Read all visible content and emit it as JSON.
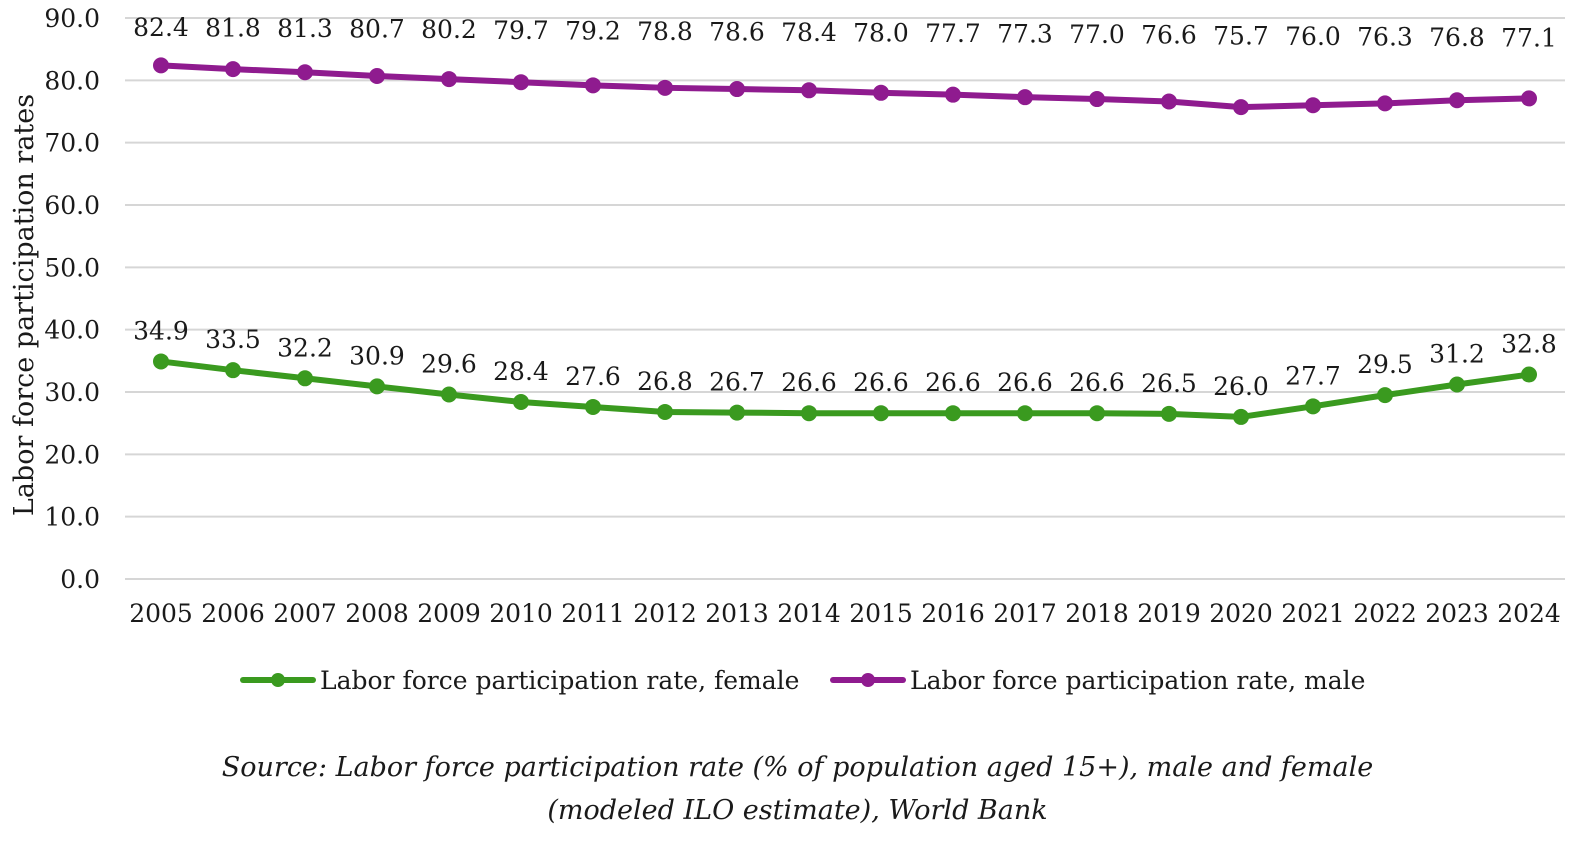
{
  "chart_data": {
    "type": "line",
    "categories": [
      "2005",
      "2006",
      "2007",
      "2008",
      "2009",
      "2010",
      "2011",
      "2012",
      "2013",
      "2014",
      "2015",
      "2016",
      "2017",
      "2018",
      "2019",
      "2020",
      "2021",
      "2022",
      "2023",
      "2024"
    ],
    "series": [
      {
        "name": "Labor force participation rate, female",
        "color": "#3a9a1f",
        "values": [
          34.9,
          33.5,
          32.2,
          30.9,
          29.6,
          28.4,
          27.6,
          26.8,
          26.7,
          26.6,
          26.6,
          26.6,
          26.6,
          26.6,
          26.5,
          26.0,
          27.7,
          29.5,
          31.2,
          32.8
        ]
      },
      {
        "name": "Labor force participation rate, male",
        "color": "#8f1b8f",
        "values": [
          82.4,
          81.8,
          81.3,
          80.7,
          80.2,
          79.7,
          79.2,
          78.8,
          78.6,
          78.4,
          78.0,
          77.7,
          77.3,
          77.0,
          76.6,
          75.7,
          76.0,
          76.3,
          76.8,
          77.1
        ]
      }
    ],
    "ylabel": "Labor force participation rates",
    "ylim": [
      0,
      90
    ],
    "yticks": [
      "0.0",
      "10.0",
      "20.0",
      "30.0",
      "40.0",
      "50.0",
      "60.0",
      "70.0",
      "80.0",
      "90.0"
    ],
    "grid": true,
    "legend": "bottom"
  },
  "source": {
    "line1": "Source: Labor force participation rate (% of population aged 15+), male and female",
    "line2": "(modeled ILO  estimate), World Bank"
  }
}
